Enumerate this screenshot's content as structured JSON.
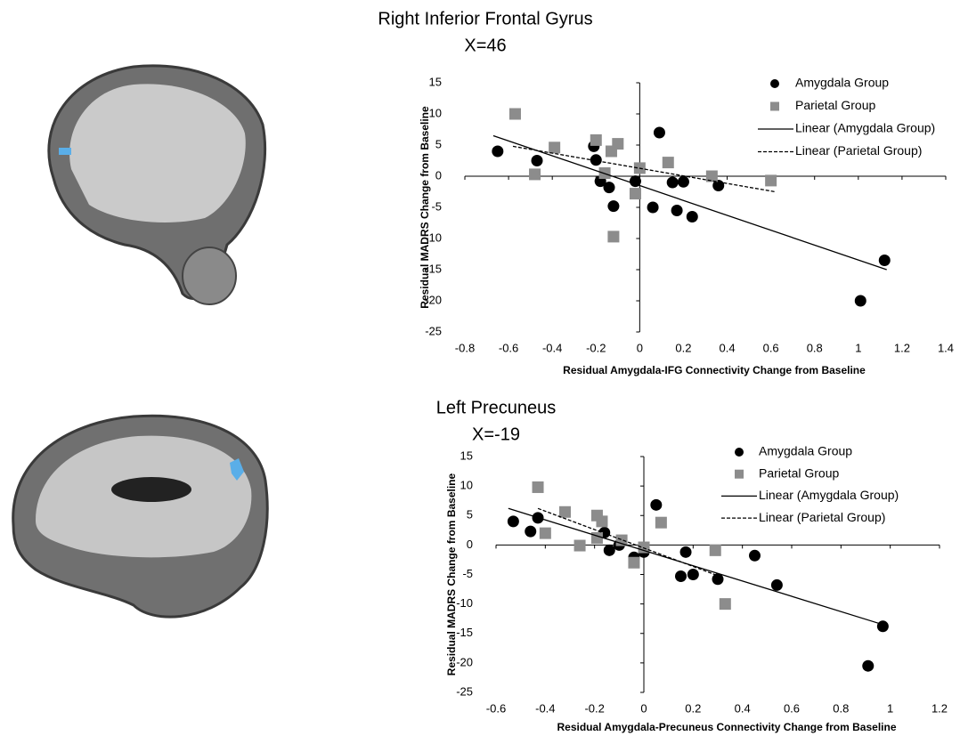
{
  "chart_data": [
    {
      "type": "scatter",
      "title": "Right Inferior Frontal Gyrus",
      "subtitle": "X=46",
      "x_label": "Residual Amygdala-IFG Connectivity Change from Baseline",
      "y_label": "Residual MADRS Change from Baseline",
      "xlim": [
        -0.8,
        1.4
      ],
      "xticks": [
        -0.8,
        -0.6,
        -0.4,
        -0.2,
        0,
        0.2,
        0.4,
        0.6,
        0.8,
        1,
        1.2,
        1.4
      ],
      "ylim": [
        -25,
        15
      ],
      "yticks": [
        -25,
        -20,
        -15,
        -10,
        -5,
        0,
        5,
        10,
        15
      ],
      "series": [
        {
          "name": "Amygdala Group",
          "type": "scatter",
          "marker": "circle",
          "color": "#000000",
          "x": [
            -0.65,
            -0.47,
            -0.21,
            -0.2,
            -0.18,
            -0.14,
            -0.12,
            -0.02,
            0.09,
            0.06,
            0.15,
            0.2,
            0.17,
            0.24,
            0.36,
            1.01,
            1.12
          ],
          "values": [
            4,
            2.5,
            4.8,
            2.6,
            -0.8,
            -1.8,
            -4.8,
            -0.8,
            7,
            -5,
            -1,
            -0.9,
            -5.5,
            -6.5,
            -1.5,
            -20,
            -13.5
          ]
        },
        {
          "name": "Parietal Group",
          "type": "scatter",
          "marker": "square",
          "color": "#8c8c8c",
          "x": [
            -0.57,
            -0.48,
            -0.39,
            -0.2,
            -0.13,
            -0.1,
            -0.16,
            -0.12,
            -0.02,
            0,
            0.13,
            0.33,
            0.6
          ],
          "values": [
            10,
            0.3,
            4.6,
            5.8,
            4,
            5.2,
            0.5,
            -9.7,
            -2.8,
            1.3,
            2.2,
            0,
            -0.7
          ]
        },
        {
          "name": "Linear (Amygdala Group)",
          "type": "line",
          "dash": false,
          "color": "#000000",
          "x": [
            -0.67,
            1.13
          ],
          "values": [
            6.5,
            -15
          ]
        },
        {
          "name": "Linear (Parietal Group)",
          "type": "line",
          "dash": true,
          "color": "#000000",
          "x": [
            -0.58,
            0.62
          ],
          "values": [
            4.8,
            -2.5
          ]
        }
      ]
    },
    {
      "type": "scatter",
      "title": "Left Precuneus",
      "subtitle": "X=-19",
      "x_label": "Residual Amygdala-Precuneus Connectivity Change from Baseline",
      "y_label": "Residual MADRS Change from Baseline",
      "xlim": [
        -0.6,
        1.2
      ],
      "xticks": [
        -0.6,
        -0.4,
        -0.2,
        0,
        0.2,
        0.4,
        0.6,
        0.8,
        1,
        1.2
      ],
      "ylim": [
        -25,
        15
      ],
      "yticks": [
        -25,
        -20,
        -15,
        -10,
        -5,
        0,
        5,
        10,
        15
      ],
      "series": [
        {
          "name": "Amygdala Group",
          "type": "scatter",
          "marker": "circle",
          "color": "#000000",
          "x": [
            -0.53,
            -0.46,
            -0.43,
            -0.16,
            -0.14,
            -0.1,
            -0.04,
            0,
            0.05,
            0.15,
            0.17,
            0.2,
            0.3,
            0.45,
            0.54,
            0.97,
            0.91
          ],
          "values": [
            4,
            2.3,
            4.6,
            2.1,
            -0.9,
            0,
            -2.1,
            -1.2,
            6.8,
            -5.3,
            -1.2,
            -5,
            -5.8,
            -1.8,
            -6.8,
            -13.8,
            -20.5
          ]
        },
        {
          "name": "Parietal Group",
          "type": "scatter",
          "marker": "square",
          "color": "#8c8c8c",
          "x": [
            -0.43,
            -0.4,
            -0.32,
            -0.26,
            -0.19,
            -0.17,
            -0.19,
            -0.09,
            -0.04,
            0,
            0.07,
            0.29,
            0.33
          ],
          "values": [
            9.8,
            2,
            5.6,
            -0.1,
            5,
            4,
            1.2,
            0.8,
            -3,
            -0.4,
            3.8,
            -0.9,
            -10
          ]
        },
        {
          "name": "Linear (Amygdala Group)",
          "type": "line",
          "dash": false,
          "color": "#000000",
          "x": [
            -0.55,
            0.97
          ],
          "values": [
            6.2,
            -13.5
          ]
        },
        {
          "name": "Linear (Parietal Group)",
          "type": "line",
          "dash": true,
          "color": "#000000",
          "x": [
            -0.43,
            0.3
          ],
          "values": [
            6.2,
            -5.2
          ]
        }
      ]
    }
  ]
}
